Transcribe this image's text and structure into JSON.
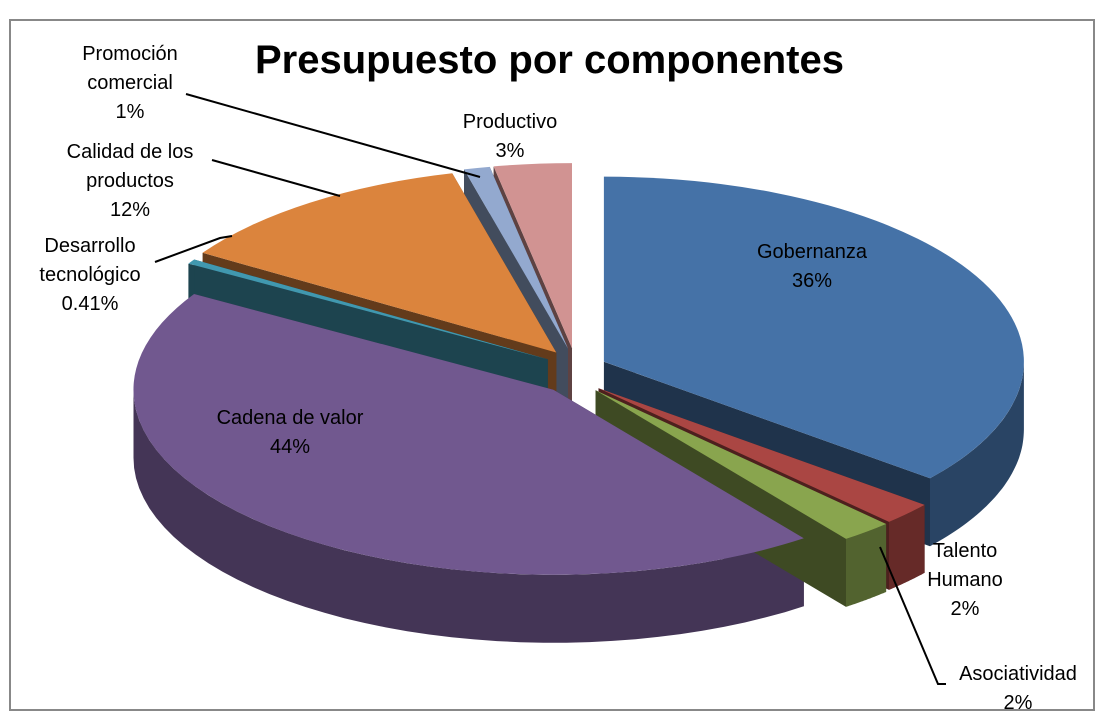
{
  "chart_data": {
    "type": "pie3d",
    "title": "Presupuesto por componentes",
    "categories": [
      "Gobernanza",
      "Talento Humano",
      "Asociatividad",
      "Cadena de valor",
      "Desarrollo tecnológico",
      "Calidad de los productos",
      "Promoción comercial",
      "Productivo"
    ],
    "values": [
      36,
      2,
      2,
      44,
      0.41,
      12,
      1,
      3
    ],
    "value_labels": [
      "36%",
      "2%",
      "2%",
      "44%",
      "0.41%",
      "12%",
      "1%",
      "3%"
    ],
    "colors": [
      "#4572a7",
      "#aa4643",
      "#89a54e",
      "#71588f",
      "#4198af",
      "#db843d",
      "#93a9cf",
      "#d19392"
    ]
  }
}
